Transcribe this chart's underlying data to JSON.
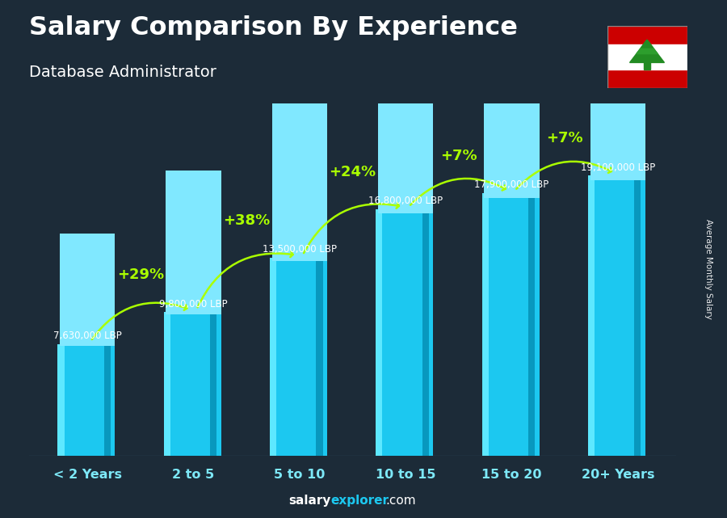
{
  "title": "Salary Comparison By Experience",
  "subtitle": "Database Administrator",
  "ylabel": "Average Monthly Salary",
  "categories": [
    "< 2 Years",
    "2 to 5",
    "5 to 10",
    "10 to 15",
    "15 to 20",
    "20+ Years"
  ],
  "values": [
    7630000,
    9800000,
    13500000,
    16800000,
    17900000,
    19100000
  ],
  "value_labels": [
    "7,630,000 LBP",
    "9,800,000 LBP",
    "13,500,000 LBP",
    "16,800,000 LBP",
    "17,900,000 LBP",
    "19,100,000 LBP"
  ],
  "pct_changes": [
    null,
    "+29%",
    "+38%",
    "+24%",
    "+7%",
    "+7%"
  ],
  "bar_color_main": "#1cc8f0",
  "bar_color_left": "#5de8ff",
  "bar_color_right": "#0898be",
  "bar_color_top": "#80e8ff",
  "background_color": "#1c2b38",
  "title_color": "#ffffff",
  "subtitle_color": "#ffffff",
  "label_color": "#ffffff",
  "pct_color": "#aaff00",
  "tick_color": "#7de8f8",
  "ylim": [
    0,
    24000000
  ],
  "figsize": [
    9.0,
    6.41
  ],
  "dpi": 100,
  "bar_width": 0.52
}
